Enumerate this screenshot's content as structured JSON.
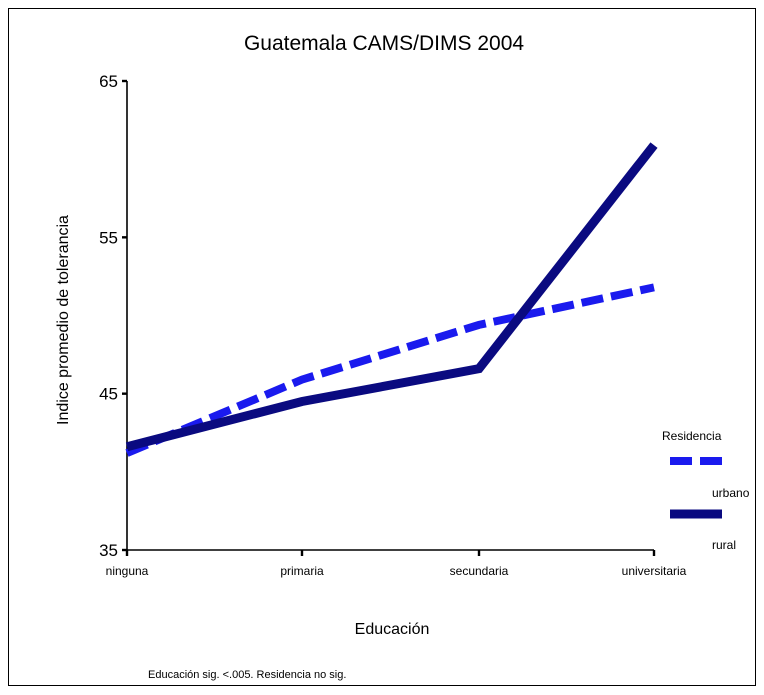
{
  "chart_data": {
    "type": "line",
    "title": "Guatemala CAMS/DIMS 2004",
    "xlabel": "Educación",
    "ylabel": "Indice promedio de tolerancia",
    "categories": [
      "ninguna",
      "primaria",
      "secundaria",
      "universitaria"
    ],
    "ylim": [
      35,
      65
    ],
    "yticks": [
      35,
      45,
      55,
      65
    ],
    "grid": false,
    "legend": {
      "title": "Residencia",
      "placement": "right"
    },
    "series": [
      {
        "name": "urbano",
        "values": [
          41.2,
          45.9,
          49.4,
          51.8
        ],
        "color": "#1a1aee",
        "style": "dashed"
      },
      {
        "name": "rural",
        "values": [
          41.6,
          44.5,
          46.6,
          60.9
        ],
        "color": "#0a0a80",
        "style": "solid"
      }
    ],
    "note": "Educación sig. <.005. Residencia no sig."
  }
}
